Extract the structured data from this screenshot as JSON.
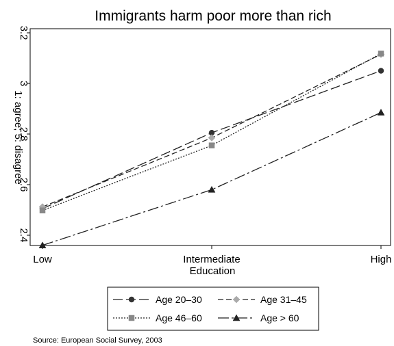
{
  "chart_data": {
    "type": "line",
    "title": "Immigrants harm poor more than rich",
    "xlabel": "Education",
    "ylabel": "1: agree; 5: disagree",
    "categories": [
      "Low",
      "Intermediate",
      "High"
    ],
    "ylim": [
      2.35,
      3.22
    ],
    "yticks": [
      2.4,
      2.6,
      2.8,
      3,
      3.2
    ],
    "ytick_labels": [
      "2.4",
      "2.6",
      "2.8",
      "3",
      "3.2"
    ],
    "grid": false,
    "legend_position": "bottom",
    "series": [
      {
        "name": "Age 20–30",
        "values": [
          2.505,
          2.805,
          3.05
        ],
        "marker": "circle",
        "dash": "14 5",
        "color": "#222222",
        "marker_color": "#333333"
      },
      {
        "name": "Age 31–45",
        "values": [
          2.512,
          2.785,
          3.115
        ],
        "marker": "diamond",
        "dash": "8 4",
        "color": "#222222",
        "marker_color": "#aaaaaa"
      },
      {
        "name": "Age 46–60",
        "values": [
          2.498,
          2.755,
          3.118
        ],
        "marker": "square",
        "dash": "2 2",
        "color": "#222222",
        "marker_color": "#888888"
      },
      {
        "name": "Age > 60",
        "values": [
          2.36,
          2.58,
          2.885
        ],
        "marker": "triangle",
        "dash": "16 4 3 4",
        "color": "#222222",
        "marker_color": "#222222"
      }
    ]
  },
  "source_note": "Source: European Social Survey, 2003"
}
